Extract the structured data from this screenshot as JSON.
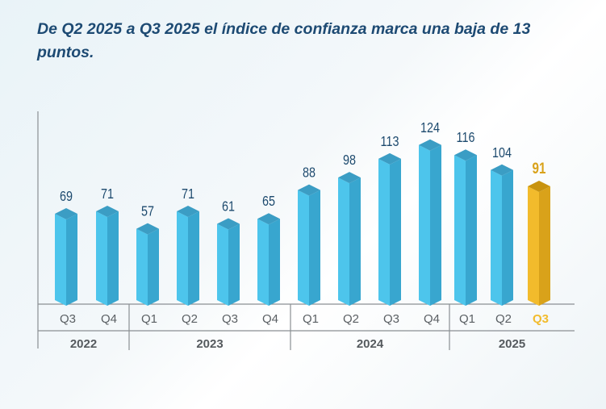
{
  "chart_data": {
    "type": "bar",
    "title": "De Q2 2025 a Q3 2025 el índice de confianza marca una baja de 13 puntos.",
    "categories": [
      "Q3",
      "Q4",
      "Q1",
      "Q2",
      "Q3",
      "Q4",
      "Q1",
      "Q2",
      "Q3",
      "Q4",
      "Q1",
      "Q2",
      "Q3"
    ],
    "years": [
      {
        "label": "2022",
        "span": 2
      },
      {
        "label": "2023",
        "span": 4
      },
      {
        "label": "2024",
        "span": 4
      },
      {
        "label": "2025",
        "span": 3
      }
    ],
    "values": [
      69,
      71,
      57,
      71,
      61,
      65,
      88,
      98,
      113,
      124,
      116,
      104,
      91
    ],
    "highlight_index": 12,
    "ylim": [
      0,
      130
    ],
    "grid": false,
    "colors": {
      "bar": "#4dc5ec",
      "bar_side": "#38a6cf",
      "bar_top": "#3b9dc4",
      "highlight": "#f2bb2c",
      "highlight_side": "#d9a21a",
      "highlight_top": "#c8930f",
      "label": "#1d4a6e",
      "axis_text": "#5a5f63"
    }
  }
}
